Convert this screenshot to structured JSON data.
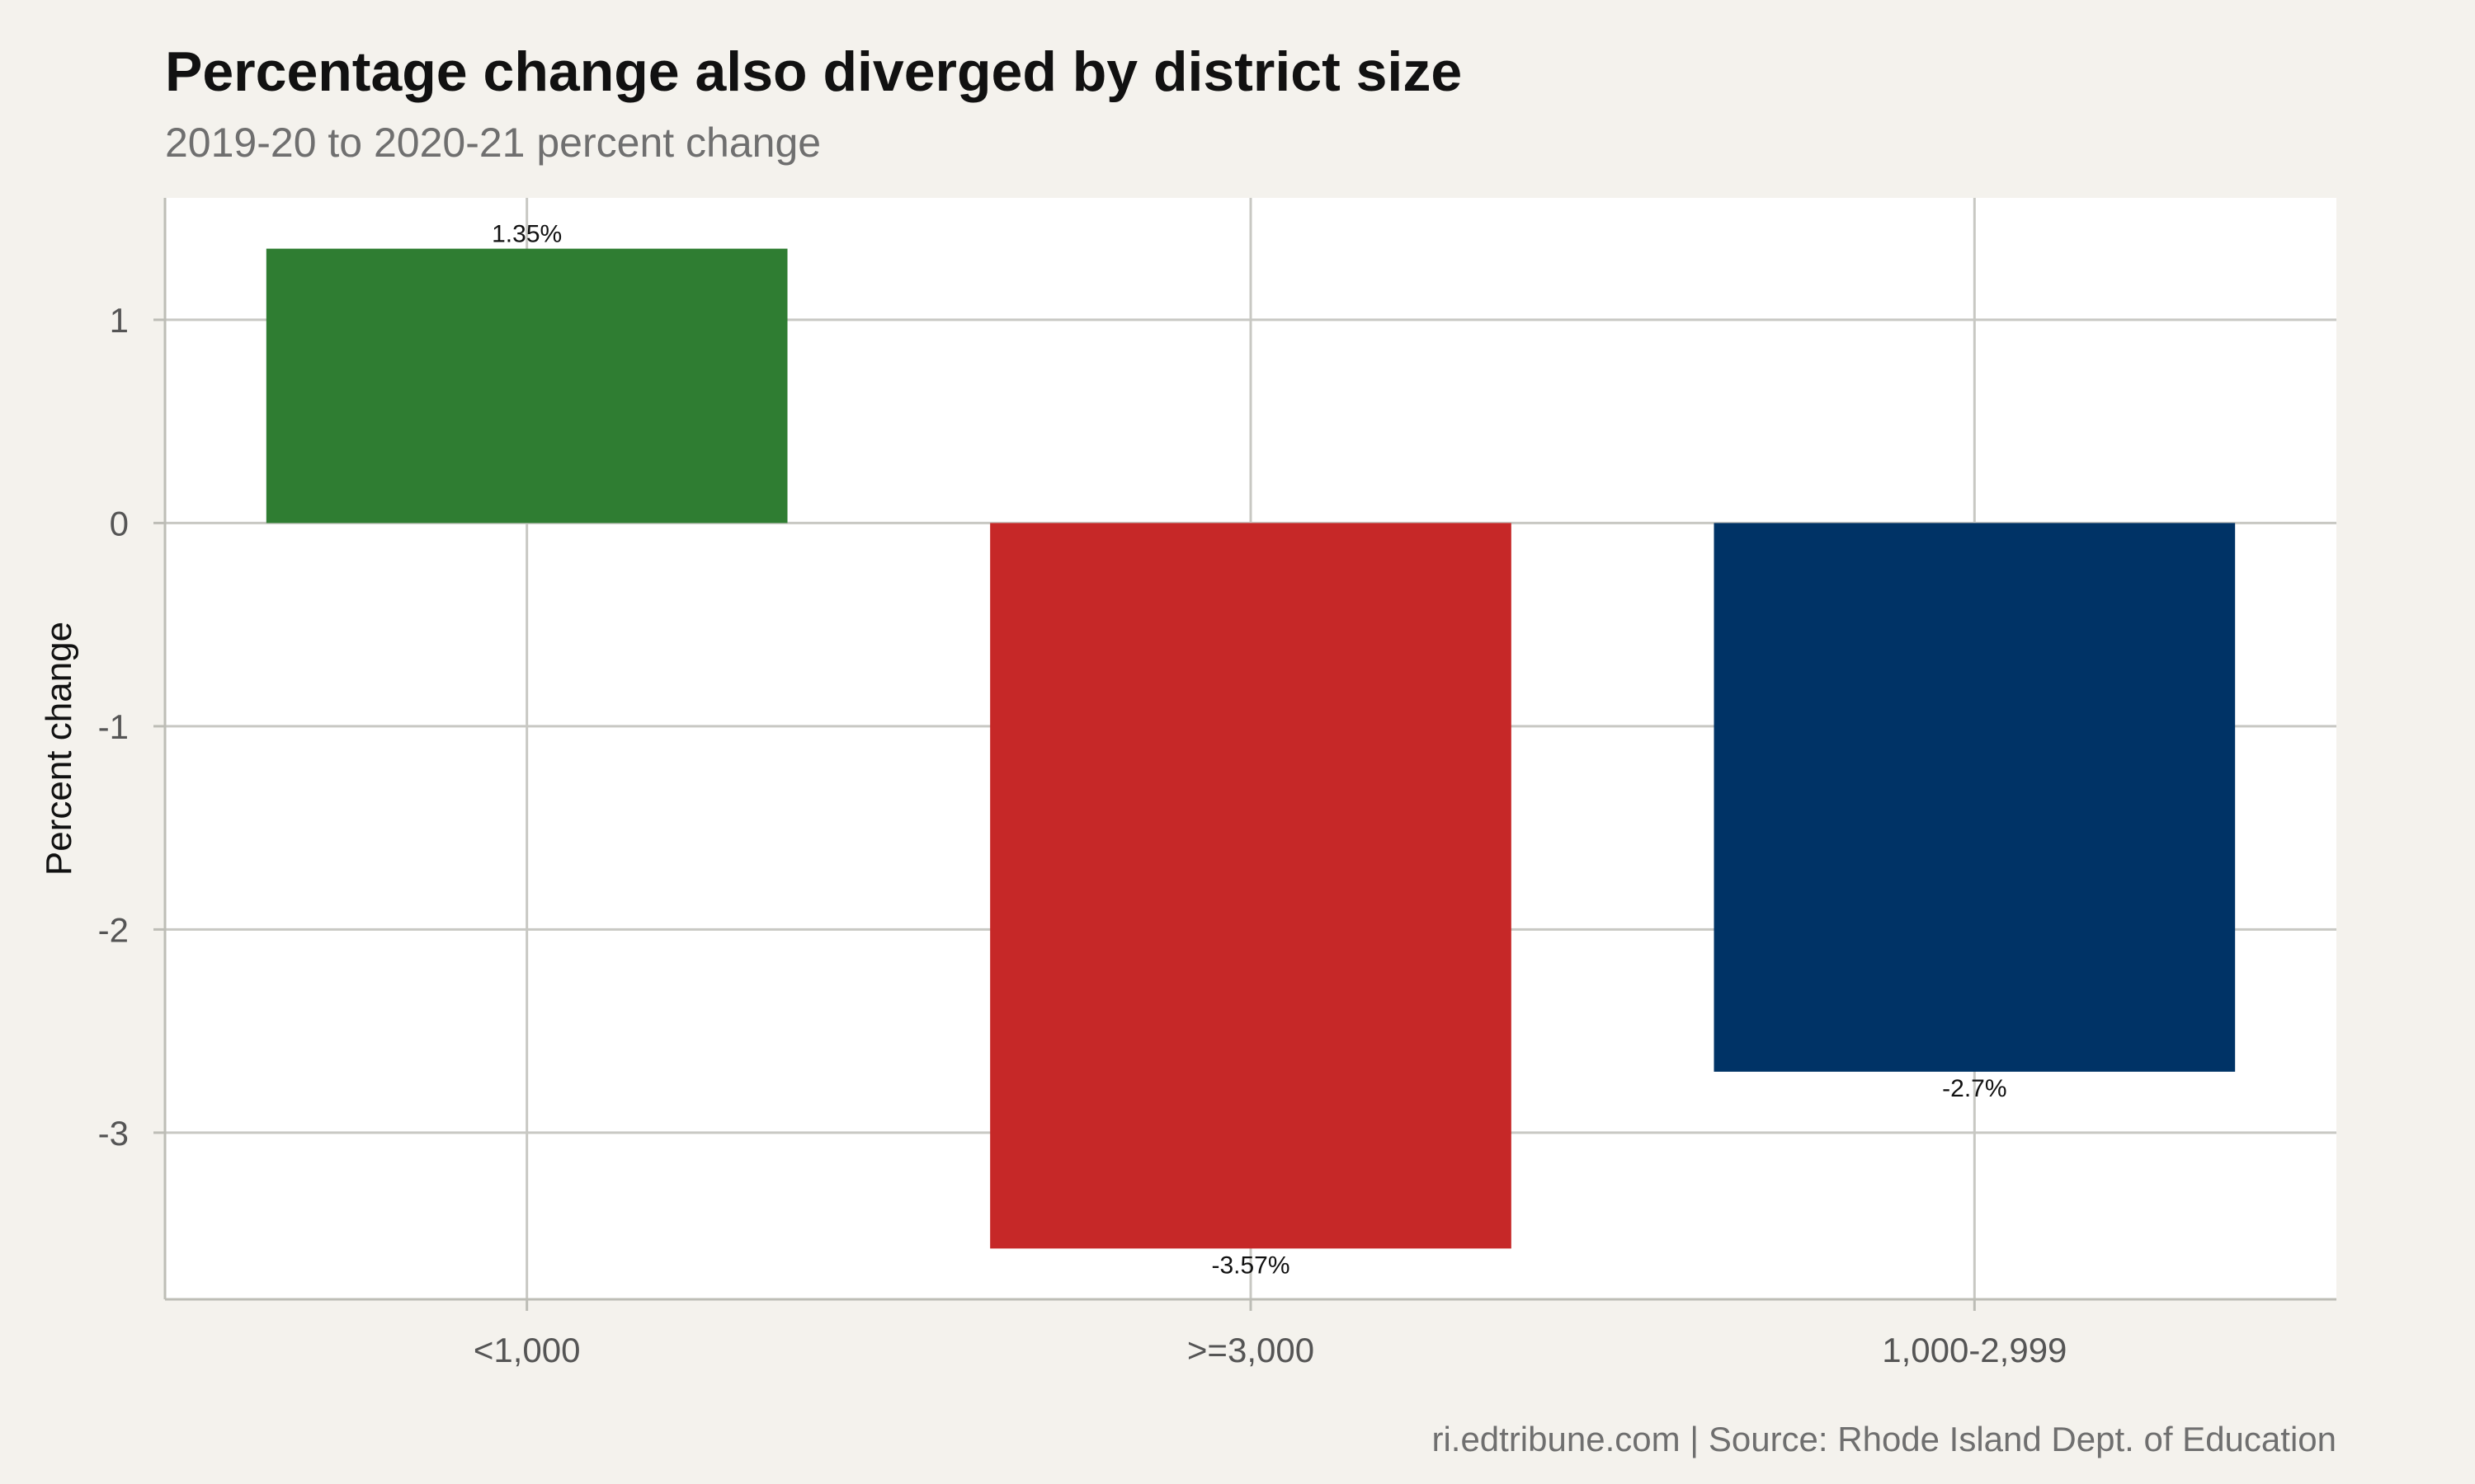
{
  "chart_data": {
    "type": "bar",
    "title": "Percentage change also diverged by district size",
    "subtitle": "2019-20 to 2020-21 percent change",
    "xlabel": "",
    "ylabel": "Percent change",
    "categories": [
      "<1,000",
      ">=3,000",
      "1,000-2,999"
    ],
    "values": [
      1.35,
      -3.57,
      -2.7
    ],
    "data_labels": [
      "1.35%",
      "-3.57%",
      "-2.7%"
    ],
    "colors": [
      "#2f7d32",
      "#c62828",
      "#003366"
    ],
    "ylim": [
      -3.82,
      1.6
    ],
    "yticks": [
      1,
      0,
      -1,
      -2,
      -3
    ],
    "ytick_labels": [
      "1",
      "0",
      "-1",
      "-2",
      "-3"
    ],
    "grid": true,
    "legend": "none",
    "caption": "ri.edtribune.com | Source: Rhode Island Dept. of Education"
  }
}
